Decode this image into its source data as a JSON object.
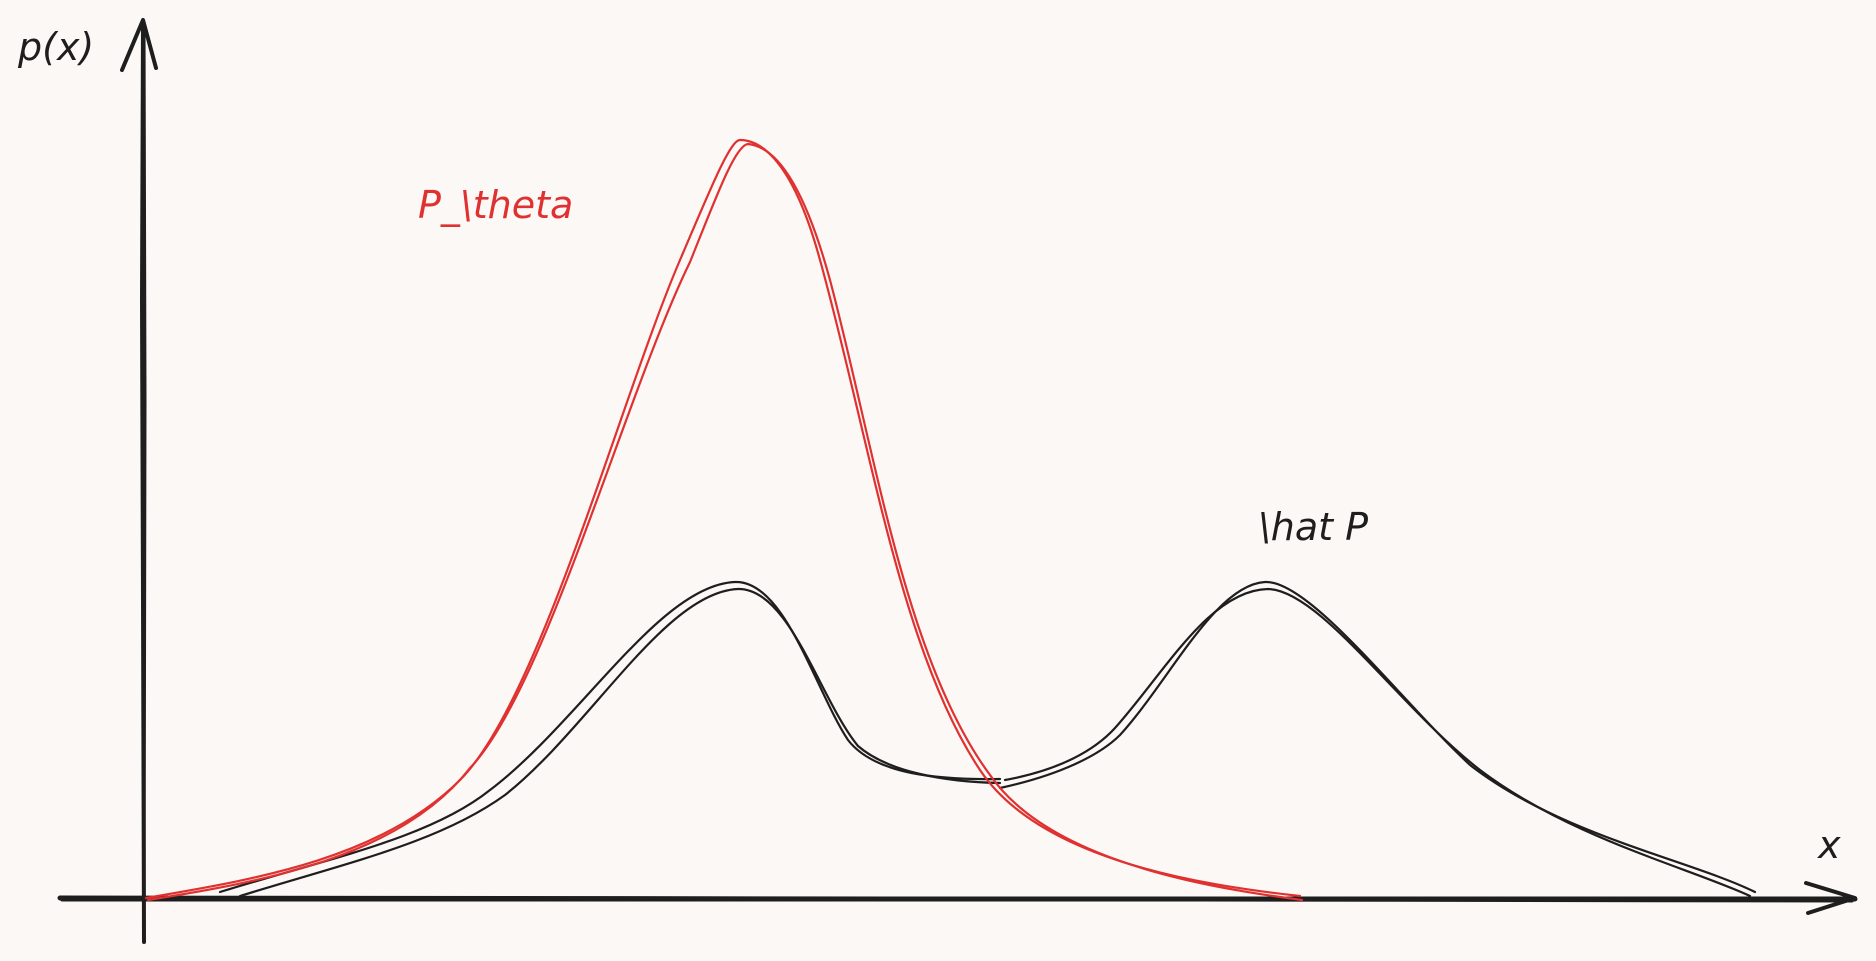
{
  "labels": {
    "y_axis": "p(x)",
    "x_axis": "x",
    "model_curve": "P_\\theta",
    "data_curve": "\\hat P"
  },
  "colors": {
    "background": "#fcf8f6",
    "ink": "#1e1e1e",
    "model": "#e03131"
  }
}
